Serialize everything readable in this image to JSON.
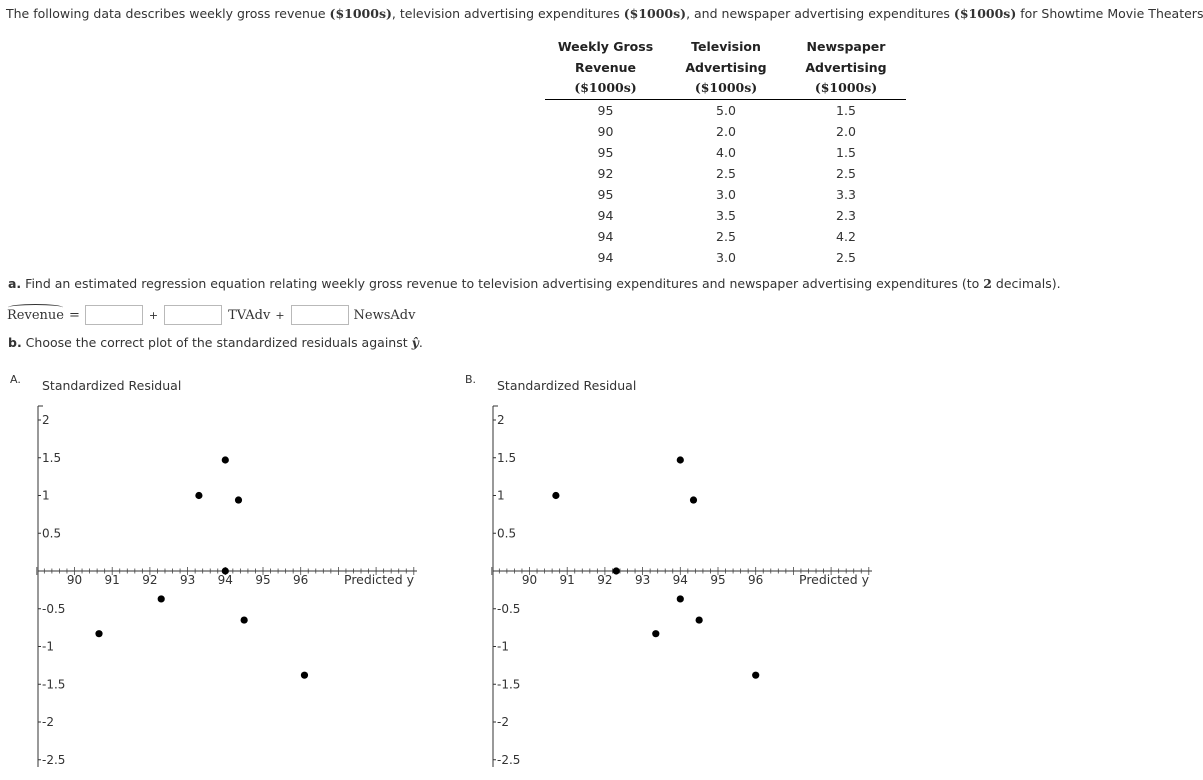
{
  "intro": {
    "text1": "The following data describes weekly gross revenue ",
    "u1": "($1000s)",
    "text2": ", television advertising expenditures ",
    "u2": "($1000s)",
    "text3": ", and newspaper advertising expenditures ",
    "u3": "($1000s)",
    "text4": " for Showtime Movie Theaters."
  },
  "table": {
    "headers": [
      {
        "l1": "Weekly Gross",
        "l2": "Revenue",
        "l3": "($1000s)"
      },
      {
        "l1": "Television",
        "l2": "Advertising",
        "l3": "($1000s)"
      },
      {
        "l1": "Newspaper",
        "l2": "Advertising",
        "l3": "($1000s)"
      }
    ],
    "rows": [
      [
        "95",
        "5.0",
        "1.5"
      ],
      [
        "90",
        "2.0",
        "2.0"
      ],
      [
        "95",
        "4.0",
        "1.5"
      ],
      [
        "92",
        "2.5",
        "2.5"
      ],
      [
        "95",
        "3.0",
        "3.3"
      ],
      [
        "94",
        "3.5",
        "2.3"
      ],
      [
        "94",
        "2.5",
        "4.2"
      ],
      [
        "94",
        "3.0",
        "2.5"
      ]
    ]
  },
  "question_a": {
    "label": "a.",
    "text": " Find an estimated regression equation relating weekly gross revenue to television advertising expenditures and newspaper advertising expenditures (to ",
    "decimals": "2",
    "text_end": " decimals)."
  },
  "equation": {
    "lhs": "Revenue",
    "equals": "=",
    "plus1": "+",
    "term1": "TVAdv",
    "plus2": "+",
    "term2": "NewsAdv",
    "input1_value": "",
    "input2_value": "",
    "input3_value": ""
  },
  "question_b": {
    "label": "b.",
    "text": " Choose the correct plot of the standardized residuals against ",
    "symbol": "ŷ",
    "end": "."
  },
  "chart_data": [
    {
      "type": "scatter",
      "option": "A.",
      "title": "",
      "ylabel": "Standardized Residual",
      "xlabel": "Predicted y",
      "xlim": [
        89,
        99
      ],
      "ylim": [
        -2.5,
        2
      ],
      "xticks": [
        "90",
        "91",
        "92",
        "93",
        "94",
        "95",
        "96"
      ],
      "yticks": [
        "2",
        "1.5",
        "1",
        "0.5",
        "-0.5",
        "-1",
        "-1.5",
        "-2",
        "-2.5"
      ],
      "points": [
        {
          "x": 90.65,
          "y": -0.83
        },
        {
          "x": 92.3,
          "y": -0.37
        },
        {
          "x": 93.3,
          "y": 1.0
        },
        {
          "x": 94.0,
          "y": 1.47
        },
        {
          "x": 94.35,
          "y": 0.94
        },
        {
          "x": 94.0,
          "y": 0.0
        },
        {
          "x": 94.5,
          "y": -0.65
        },
        {
          "x": 96.1,
          "y": -1.38
        }
      ]
    },
    {
      "type": "scatter",
      "option": "B.",
      "title": "",
      "ylabel": "Standardized Residual",
      "xlabel": "Predicted y",
      "xlim": [
        89,
        99
      ],
      "ylim": [
        -2.5,
        2
      ],
      "xticks": [
        "90",
        "91",
        "92",
        "93",
        "94",
        "95",
        "96"
      ],
      "yticks": [
        "2",
        "1.5",
        "1",
        "0.5",
        "-0.5",
        "-1",
        "-1.5",
        "-2",
        "-2.5"
      ],
      "points": [
        {
          "x": 90.7,
          "y": 1.0
        },
        {
          "x": 92.3,
          "y": 0.0
        },
        {
          "x": 93.35,
          "y": -0.83
        },
        {
          "x": 94.0,
          "y": 1.47
        },
        {
          "x": 94.0,
          "y": -0.37
        },
        {
          "x": 94.35,
          "y": 0.94
        },
        {
          "x": 94.5,
          "y": -0.65
        },
        {
          "x": 96.0,
          "y": -1.38
        }
      ]
    }
  ]
}
